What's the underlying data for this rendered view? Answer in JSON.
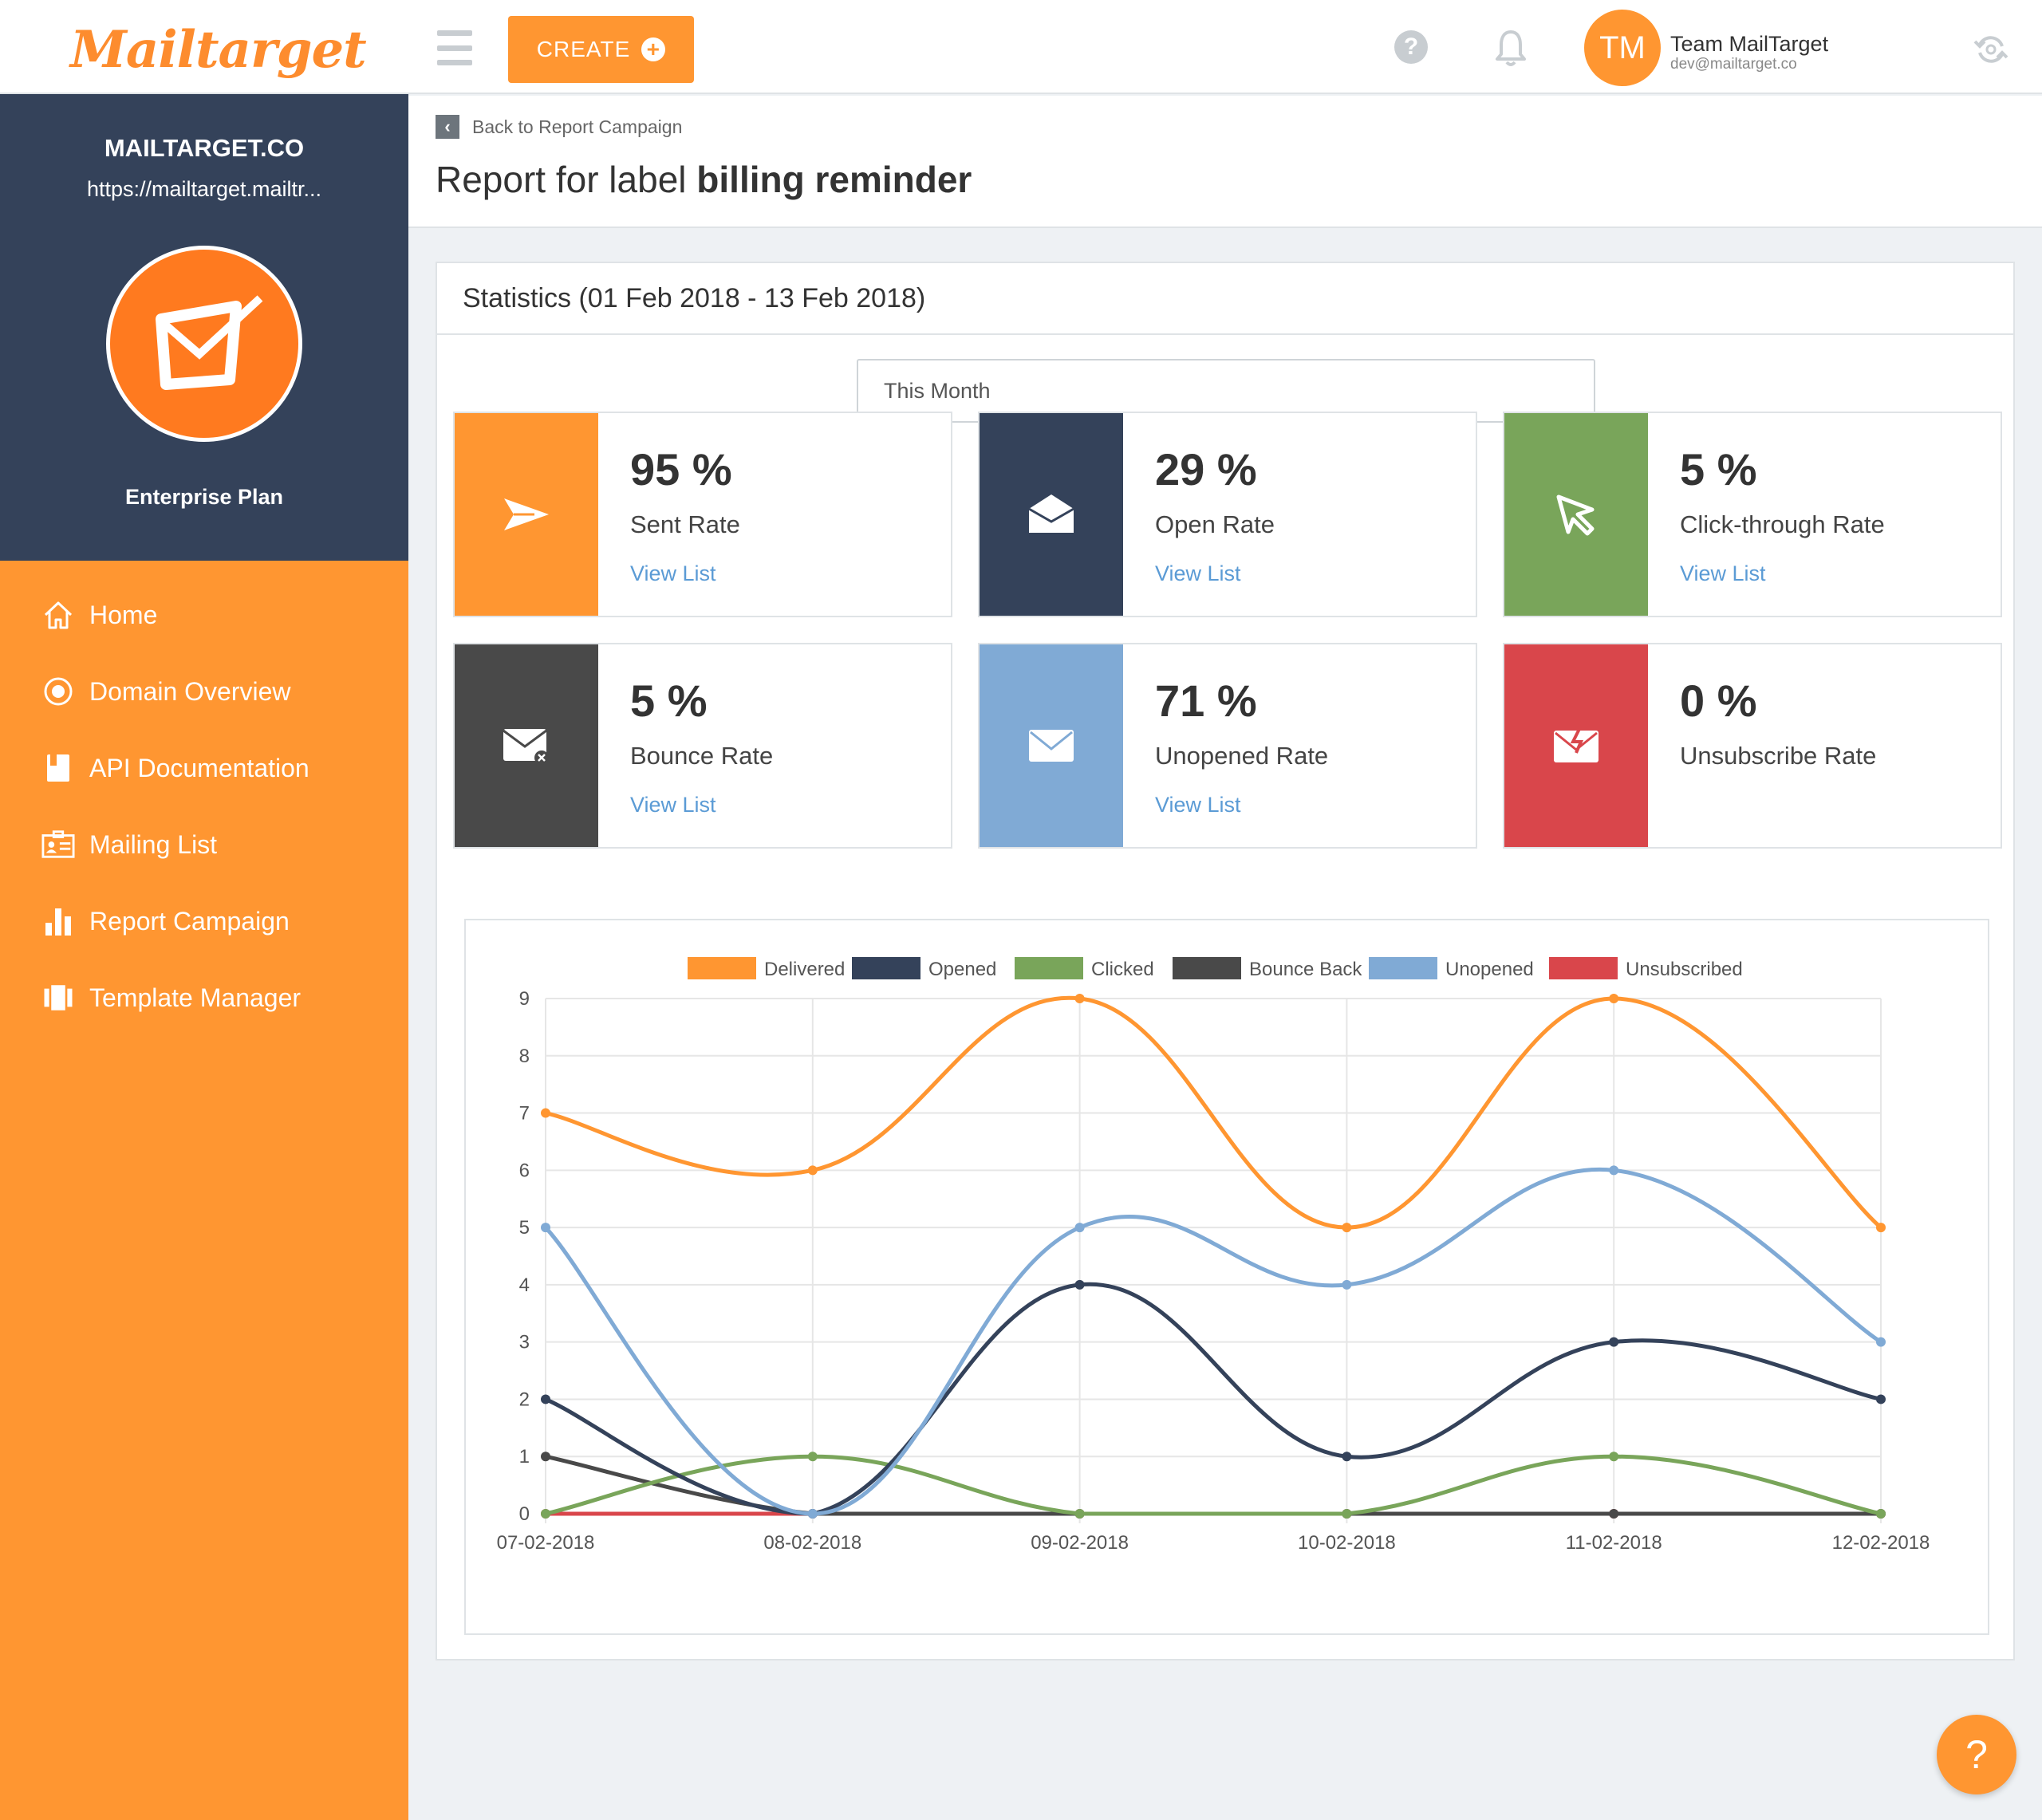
{
  "app": {
    "logo_text": "Mailtarget",
    "create_label": "CREATE",
    "user": {
      "initials": "TM",
      "name": "Team MailTarget",
      "email": "dev@mailtarget.co"
    }
  },
  "sidebar": {
    "org_name": "MAILTARGET.CO",
    "org_url": "https://mailtarget.mailtr...",
    "plan": "Enterprise Plan",
    "items": [
      {
        "label": "Home",
        "icon": "home-icon"
      },
      {
        "label": "Domain Overview",
        "icon": "target-icon"
      },
      {
        "label": "API Documentation",
        "icon": "book-icon"
      },
      {
        "label": "Mailing List",
        "icon": "contact-card-icon"
      },
      {
        "label": "Report Campaign",
        "icon": "bar-chart-icon"
      },
      {
        "label": "Template Manager",
        "icon": "template-icon"
      }
    ]
  },
  "header": {
    "back_label": "Back to Report Campaign",
    "title_prefix": "Report for label",
    "title_label": "billing reminder"
  },
  "statistics": {
    "title": "Statistics (01 Feb 2018 - 13 Feb 2018)",
    "range_selected": "This Month",
    "cards": [
      {
        "value": "95 %",
        "label": "Sent Rate",
        "link": "View List",
        "color": "#ff9631",
        "icon": "send-icon"
      },
      {
        "value": "29 %",
        "label": "Open Rate",
        "link": "View List",
        "color": "#34425a",
        "icon": "open-envelope-icon"
      },
      {
        "value": "5 %",
        "label": "Click-through Rate",
        "link": "View List",
        "color": "#79a55a",
        "icon": "cursor-icon"
      },
      {
        "value": "5 %",
        "label": "Bounce Rate",
        "link": "View List",
        "color": "#494949",
        "icon": "bounce-envelope-icon"
      },
      {
        "value": "71 %",
        "label": "Unopened Rate",
        "link": "View List",
        "color": "#80aad5",
        "icon": "closed-envelope-icon"
      },
      {
        "value": "0 %",
        "label": "Unsubscribe Rate",
        "link": "",
        "color": "#d9464b",
        "icon": "unsubscribe-envelope-icon"
      }
    ]
  },
  "chart_data": {
    "type": "line",
    "categories": [
      "07-02-2018",
      "08-02-2018",
      "09-02-2018",
      "10-02-2018",
      "11-02-2018",
      "12-02-2018"
    ],
    "ylim": [
      0,
      9
    ],
    "yticks": [
      0,
      1,
      2,
      3,
      4,
      5,
      6,
      7,
      8,
      9
    ],
    "legend_position": "top",
    "grid": true,
    "series": [
      {
        "name": "Delivered",
        "color": "#ff9631",
        "values": [
          7,
          6,
          9,
          5,
          9,
          5
        ]
      },
      {
        "name": "Opened",
        "color": "#34425a",
        "values": [
          2,
          0,
          4,
          1,
          3,
          2
        ]
      },
      {
        "name": "Clicked",
        "color": "#79a55a",
        "values": [
          0,
          1,
          0,
          0,
          1,
          0
        ]
      },
      {
        "name": "Bounce Back",
        "color": "#494949",
        "values": [
          1,
          0,
          0,
          0,
          0,
          0
        ]
      },
      {
        "name": "Unopened",
        "color": "#80aad5",
        "values": [
          5,
          0,
          5,
          4,
          6,
          3
        ]
      },
      {
        "name": "Unsubscribed",
        "color": "#d9464b",
        "values": [
          0,
          0,
          0,
          0,
          0,
          0
        ]
      }
    ]
  },
  "fab": {
    "label": "?"
  }
}
